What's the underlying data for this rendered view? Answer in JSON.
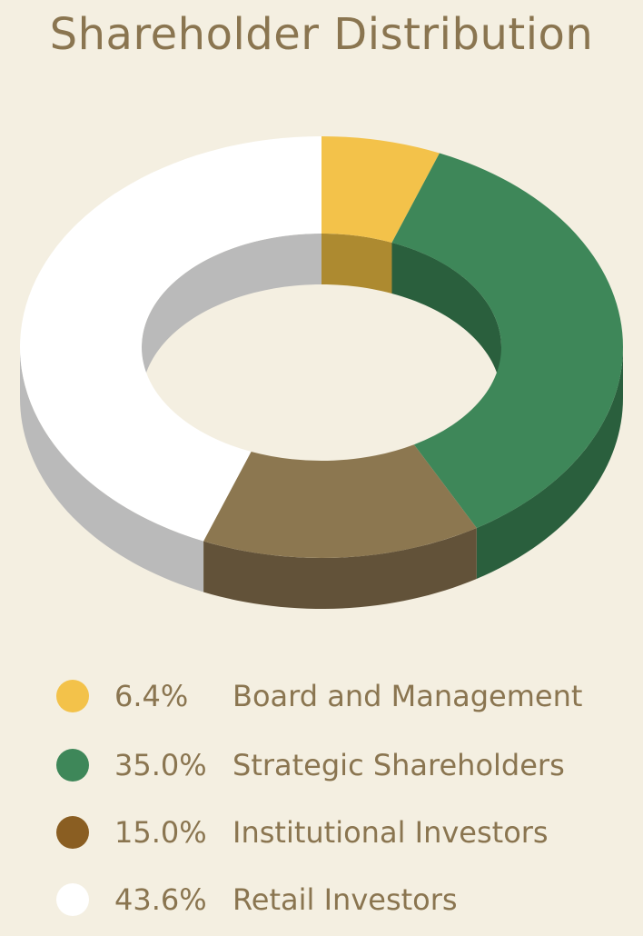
{
  "chart_data": {
    "type": "pie",
    "variant": "3d-donut",
    "title": "Shareholder Distribution",
    "slices": [
      {
        "label": "Board and Management",
        "value": 6.4,
        "display": "6.4%",
        "color": "#f3c24a",
        "side_color": "#ad8a30"
      },
      {
        "label": "Strategic Shareholders",
        "value": 35.0,
        "display": "35.0%",
        "color": "#3e8759",
        "side_color": "#2a5f3d"
      },
      {
        "label": "Institutional Investors",
        "value": 15.0,
        "display": "15.0%",
        "color": "#8c7750",
        "side_color": "#625239"
      },
      {
        "label": "Retail Investors",
        "value": 43.6,
        "display": "43.6%",
        "color": "#ffffff",
        "side_color": "#bababa"
      }
    ],
    "legend_position": "bottom",
    "legend_dot_colors": [
      "#f3c24a",
      "#3e8759",
      "#8a5e22",
      "#ffffff"
    ],
    "start_angle_deg": 0,
    "direction": "clockwise"
  }
}
